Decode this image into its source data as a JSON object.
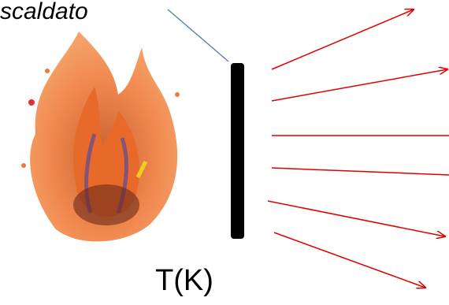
{
  "labels": {
    "top": "scaldato",
    "bottom": "T(K)"
  }
}
